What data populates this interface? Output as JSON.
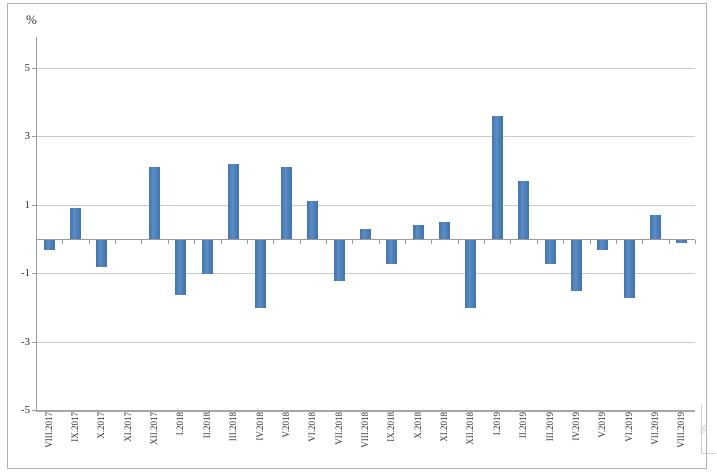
{
  "chart_data": {
    "type": "bar",
    "title": "",
    "ylabel": "%",
    "xlabel": "",
    "categories": [
      "VIII.2017",
      "IX.2017",
      "X.2017",
      "XI.2017",
      "XII.2017",
      "I.2018",
      "II.2018",
      "III.2018",
      "IV.2018",
      "V.2018",
      "VI.2018",
      "VII.2018",
      "VIII.2018",
      "IX.2018",
      "X.2018",
      "XI.2018",
      "XII.2018",
      "I.2019",
      "II.2019",
      "III.2019",
      "IV.2019",
      "V.2019",
      "VI.2019",
      "VII.2019",
      "VIII.2019"
    ],
    "values": [
      -0.3,
      0.9,
      -0.8,
      0.0,
      2.1,
      -1.6,
      -1.0,
      2.2,
      -2.0,
      2.1,
      1.1,
      -1.2,
      0.3,
      -0.7,
      0.4,
      0.5,
      -2.0,
      3.6,
      1.7,
      -0.7,
      -1.5,
      -0.3,
      -1.7,
      0.7,
      -0.1
    ],
    "ytick_labels": [
      "5",
      "3",
      "1",
      "-1",
      "-3",
      "-5"
    ],
    "ytick_values": [
      5,
      3,
      1,
      -1,
      -3,
      -5
    ],
    "ylim": [
      -5,
      5.9
    ],
    "grid": "horizontal gridlines at odd values, zero axis with category ticks",
    "legend_position": "none",
    "bar_color": "#4f81bd",
    "gridline_color": "#c9c9c9",
    "axis_color": "#9a9a9a"
  },
  "watermark_fragment": "96"
}
